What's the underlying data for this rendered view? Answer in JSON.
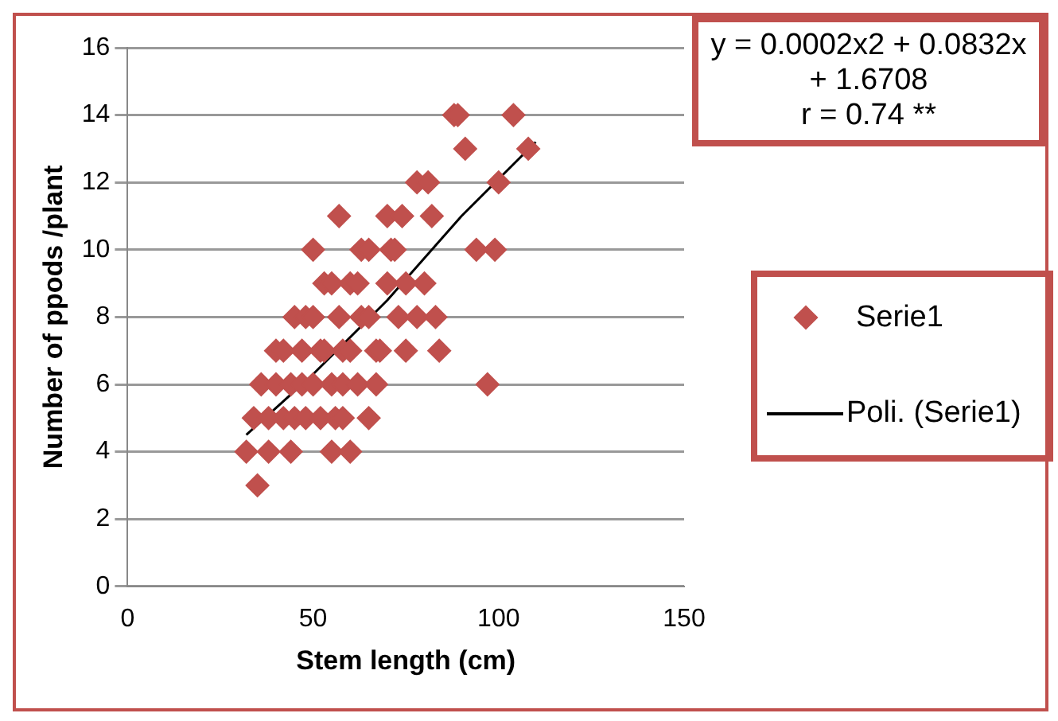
{
  "chart_data": {
    "type": "scatter",
    "xlabel": "Stem length (cm)",
    "ylabel": "Number of ppods /plant",
    "xlim": [
      0,
      150
    ],
    "xticks": [
      0,
      50,
      100,
      150
    ],
    "ylim": [
      0,
      16
    ],
    "yticks": [
      0,
      2,
      4,
      6,
      8,
      10,
      12,
      14,
      16
    ],
    "grid": "y",
    "legend": "right",
    "marker": "diamond",
    "annotations": [
      "y = 0.0002x2 + 0.0832x + 1.6708",
      "r = 0.74 **"
    ],
    "series": [
      {
        "name": "Serie1",
        "color": "#c0504d",
        "x": [
          32,
          35,
          34,
          36,
          38,
          38,
          40,
          40,
          42,
          42,
          44,
          44,
          45,
          45,
          47,
          47,
          48,
          48,
          50,
          50,
          50,
          52,
          52,
          53,
          53,
          55,
          55,
          55,
          56,
          57,
          57,
          58,
          58,
          58,
          60,
          60,
          60,
          62,
          62,
          63,
          63,
          65,
          65,
          65,
          67,
          67,
          68,
          70,
          70,
          71,
          72,
          73,
          74,
          75,
          75,
          78,
          78,
          80,
          81,
          82,
          83,
          84,
          88,
          89,
          91,
          94,
          97,
          99,
          100,
          104,
          108
        ],
        "values": [
          4,
          3,
          5,
          6,
          4,
          5,
          7,
          6,
          5,
          7,
          4,
          6,
          8,
          5,
          7,
          6,
          8,
          5,
          10,
          8,
          6,
          5,
          7,
          9,
          7,
          9,
          6,
          4,
          5,
          8,
          11,
          5,
          7,
          6,
          4,
          7,
          9,
          9,
          6,
          10,
          8,
          8,
          5,
          10,
          6,
          7,
          7,
          11,
          9,
          10,
          10,
          8,
          11,
          7,
          9,
          12,
          8,
          9,
          12,
          11,
          8,
          7,
          14,
          14,
          13,
          10,
          6,
          10,
          12,
          14,
          13
        ]
      },
      {
        "name": "Poli. (Serie1)",
        "type": "line",
        "color": "#000000",
        "marker": "none",
        "x": [
          32,
          50,
          70,
          90,
          110
        ],
        "values": [
          4.5,
          6.3,
          8.5,
          11.0,
          13.2
        ]
      }
    ]
  }
}
